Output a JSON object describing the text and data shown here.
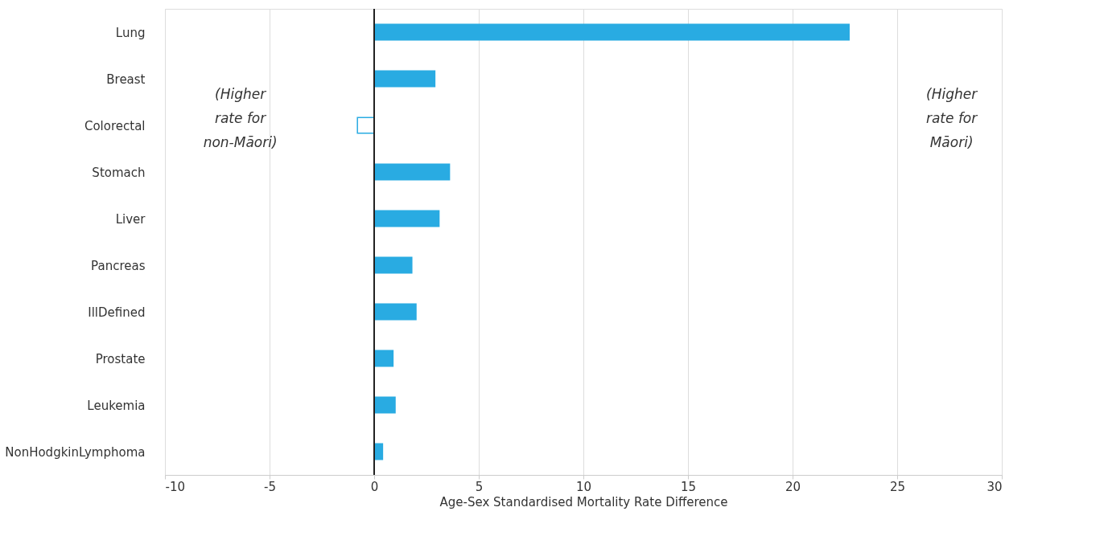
{
  "chart_data": {
    "type": "bar",
    "orientation": "horizontal",
    "xlabel": "Age-Sex Standardised Mortality Rate Difference",
    "categories": [
      "Lung",
      "Breast",
      "Colorectal",
      "Stomach",
      "Liver",
      "Pancreas",
      "IllDefined",
      "Prostate",
      "Leukemia",
      "NonHodgkinLymphoma"
    ],
    "values": [
      22.7,
      2.9,
      -0.8,
      3.6,
      3.1,
      1.8,
      2.0,
      0.9,
      1.0,
      0.4
    ],
    "color": "#29abe2",
    "colors": [
      "#29abe2",
      "#29abe2",
      "#ffffff",
      "#29abe2",
      "#29abe2",
      "#29abe2",
      "#29abe2",
      "#29abe2",
      "#29abe2",
      "#29abe2"
    ],
    "xlim": [
      -10,
      30
    ],
    "xticks": [
      -10,
      -5,
      0,
      5,
      10,
      15,
      20,
      25,
      30
    ],
    "grid": "x",
    "ref_lines": [
      {
        "axis": "x",
        "value": 0,
        "color": "#222222"
      }
    ],
    "annotations": [
      "(Higher rate for non-Māori)",
      "(Higher rate for Māori)"
    ]
  }
}
